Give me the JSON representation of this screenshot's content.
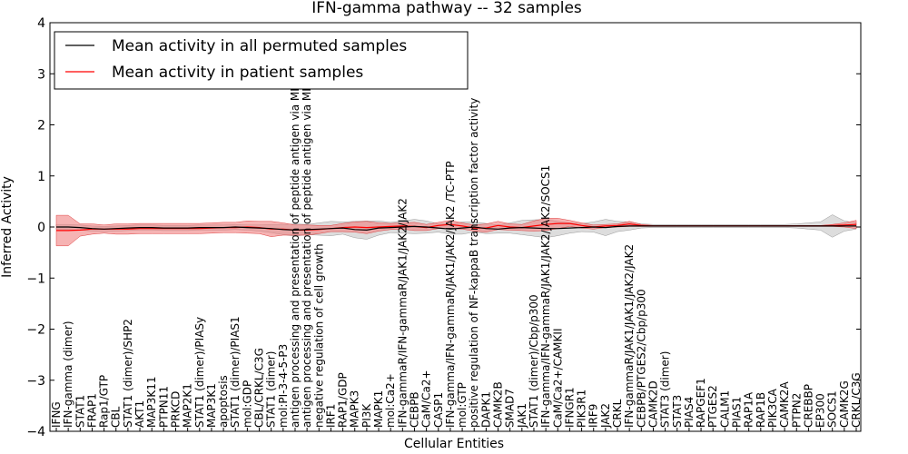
{
  "chart_data": {
    "type": "line",
    "title": "IFN-gamma pathway -- 32 samples",
    "xlabel": "Cellular Entities",
    "ylabel": "Inferred Activity",
    "ylim": [
      -4,
      4
    ],
    "yticks": [
      -4,
      -3,
      -2,
      -1,
      0,
      1,
      2,
      3,
      4
    ],
    "legend_position": "top-left",
    "colors": {
      "permuted": "#000000",
      "patient": "#ff0000",
      "patient_band": "#f08080",
      "permuted_band": "#bbbbbb"
    },
    "categories": [
      "IFNG",
      "IFN-gamma (dimer)",
      "STAT1",
      "FRAP1",
      "Rap1/GTP",
      "CBL",
      "STAT1 (dimer)/SHP2",
      "AKT1",
      "MAP3K11",
      "PTPN11",
      "PRKCD",
      "MAP2K1",
      "STAT1 (dimer)/PIASy",
      "MAP3K1",
      "apoptosis",
      "STAT1 (dimer)/PIAS1",
      "mol:GDP",
      "CBL/CRKL/C3G",
      "STAT1 (dimer)",
      "mol:PI-3-4-5-P3",
      "antigen processing and presentation of peptide antigen via MHC class I",
      "antigen processing and presentation of peptide antigen via MHC class II",
      "negative regulation of cell growth",
      "IRF1",
      "RAP1/GDP",
      "MAPK3",
      "PI3K",
      "MAPK1",
      "mol:Ca2+",
      "IFN-gammaR/IFN-gammaR/JAK1/JAK2/JAK2",
      "CEBPB",
      "CaM/Ca2+",
      "CASP1",
      "IFN-gamma/IFN-gammaR/JAK1/JAK2/JAK2 /TC-PTP",
      "mol:GTP",
      "positive regulation of NF-kappaB transcription factor activity",
      "DAPK1",
      "CAMK2B",
      "SMAD7",
      "JAK1",
      "STAT1 (dimer)/Cbp/p300",
      "IFN-gamma/IFN-gammaR/JAK1/JAK2/JAK2/SOCS1",
      "CaM/Ca2+/CAMKII",
      "IFNGR1",
      "PIK3R1",
      "IRF9",
      "JAK2",
      "CRKL",
      "IFN-gammaR/JAK1/JAK1/JAK2/JAK2",
      "CEBPB/PTGES2/Cbp/p300",
      "CAMK2D",
      "STAT3 (dimer)",
      "STAT3",
      "PIAS4",
      "RAPGEF1",
      "PTGES2",
      "CALM1",
      "PIAS1",
      "RAP1A",
      "RAP1B",
      "PIK3CA",
      "CAMK2A",
      "PTPN2",
      "CREBBP",
      "EP300",
      "SOCS1",
      "CAMK2G",
      "CRKL/C3G"
    ],
    "series": [
      {
        "name": "Mean activity in all permuted samples",
        "color": "#000000",
        "values": [
          0,
          0,
          -0.01,
          -0.03,
          -0.04,
          -0.03,
          -0.02,
          -0.01,
          -0.01,
          -0.02,
          -0.02,
          -0.02,
          -0.01,
          -0.01,
          -0.01,
          0,
          -0.01,
          -0.02,
          -0.03,
          -0.05,
          -0.06,
          -0.05,
          -0.04,
          -0.03,
          -0.02,
          -0.05,
          -0.06,
          -0.02,
          -0.01,
          0,
          0.01,
          0,
          -0.02,
          -0.04,
          -0.02,
          0,
          -0.03,
          -0.04,
          -0.02,
          -0.01,
          -0.02,
          -0.03,
          -0.03,
          -0.02,
          -0.01,
          0,
          -0.01,
          0.01,
          0.02,
          0.02,
          0.02,
          0.02,
          0.02,
          0.02,
          0.02,
          0.02,
          0.02,
          0.02,
          0.02,
          0.02,
          0.02,
          0.02,
          0.02,
          0.02,
          0.02,
          0.02,
          0.02,
          0.02
        ]
      },
      {
        "name": "Mean activity in patient samples",
        "color": "#ff0000",
        "values": [
          -0.07,
          -0.07,
          -0.06,
          -0.04,
          -0.04,
          -0.04,
          -0.04,
          -0.03,
          -0.03,
          -0.03,
          -0.03,
          -0.03,
          -0.03,
          -0.02,
          -0.01,
          -0.01,
          0,
          -0.01,
          -0.04,
          -0.04,
          -0.06,
          -0.06,
          -0.05,
          -0.03,
          -0.01,
          0,
          -0.01,
          0,
          0.01,
          0.02,
          0.01,
          -0.01,
          0.03,
          0.05,
          0.02,
          -0.02,
          -0.02,
          0.03,
          0,
          -0.01,
          0.02,
          0.05,
          0.07,
          0.07,
          0.03,
          0,
          0.02,
          0.03,
          0.06,
          0.03,
          0.02,
          0.02,
          0.02,
          0.02,
          0.02,
          0.02,
          0.02,
          0.02,
          0.02,
          0.02,
          0.02,
          0.02,
          0.02,
          0.02,
          0.02,
          0.03,
          0.04,
          0.05
        ]
      }
    ],
    "bands": {
      "patient_halfwidth": [
        0.3,
        0.3,
        0.12,
        0.1,
        0.08,
        0.1,
        0.1,
        0.1,
        0.1,
        0.1,
        0.1,
        0.1,
        0.1,
        0.1,
        0.1,
        0.1,
        0.12,
        0.12,
        0.15,
        0.12,
        0.1,
        0.1,
        0.08,
        0.06,
        0.08,
        0.1,
        0.12,
        0.08,
        0.06,
        0.06,
        0.08,
        0.06,
        0.06,
        0.08,
        0.06,
        0.06,
        0.08,
        0.08,
        0.06,
        0.06,
        0.1,
        0.12,
        0.1,
        0.06,
        0.05,
        0.04,
        0.03,
        0.03,
        0.05,
        0.02,
        0.01,
        0.01,
        0.01,
        0.01,
        0.01,
        0.01,
        0.01,
        0.01,
        0.01,
        0.01,
        0.01,
        0.01,
        0.01,
        0.01,
        0.01,
        0.02,
        0.04,
        0.08
      ],
      "permuted_halfwidth": [
        0.05,
        0.05,
        0.05,
        0.05,
        0.05,
        0.05,
        0.05,
        0.05,
        0.05,
        0.05,
        0.05,
        0.05,
        0.05,
        0.05,
        0.05,
        0.05,
        0.05,
        0.06,
        0.08,
        0.1,
        0.12,
        0.1,
        0.12,
        0.14,
        0.12,
        0.16,
        0.18,
        0.14,
        0.1,
        0.12,
        0.14,
        0.12,
        0.08,
        0.1,
        0.12,
        0.1,
        0.1,
        0.08,
        0.1,
        0.14,
        0.16,
        0.18,
        0.14,
        0.1,
        0.08,
        0.1,
        0.16,
        0.1,
        0.08,
        0.04,
        0.03,
        0.03,
        0.03,
        0.03,
        0.03,
        0.03,
        0.03,
        0.03,
        0.03,
        0.03,
        0.03,
        0.03,
        0.04,
        0.06,
        0.08,
        0.22,
        0.1,
        0.06
      ]
    }
  }
}
